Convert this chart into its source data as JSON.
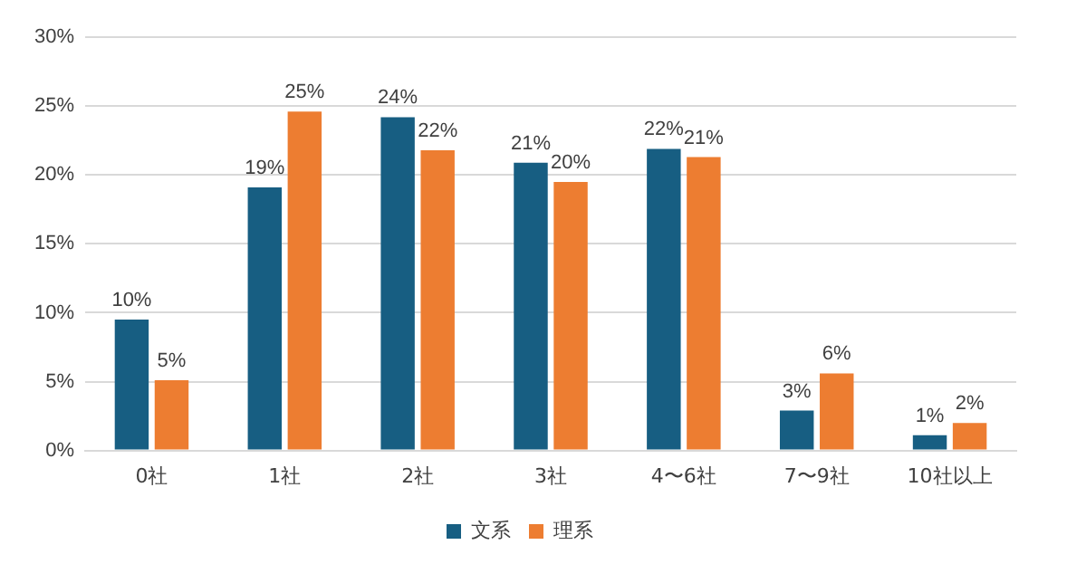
{
  "chart_data": {
    "type": "bar",
    "categories": [
      "0社",
      "1社",
      "2社",
      "3社",
      "4〜6社",
      "7〜9社",
      "10社以上"
    ],
    "series": [
      {
        "name": "文系",
        "color": "#175e82",
        "values": [
          9.5,
          19.1,
          24.2,
          20.9,
          21.9,
          2.9,
          1.1
        ],
        "value_labels": [
          "10%",
          "19%",
          "24%",
          "21%",
          "22%",
          "3%",
          "1%"
        ]
      },
      {
        "name": "理系",
        "color": "#ed7d31",
        "values": [
          5.1,
          24.6,
          21.8,
          19.5,
          21.3,
          5.6,
          2.0
        ],
        "value_labels": [
          "5%",
          "25%",
          "22%",
          "20%",
          "21%",
          "6%",
          "2%"
        ]
      }
    ],
    "ylim": [
      0,
      30
    ],
    "yticks": [
      {
        "value": 0,
        "label": "0%"
      },
      {
        "value": 5,
        "label": "5%"
      },
      {
        "value": 10,
        "label": "10%"
      },
      {
        "value": 15,
        "label": "15%"
      },
      {
        "value": 20,
        "label": "20%"
      },
      {
        "value": 25,
        "label": "25%"
      },
      {
        "value": 30,
        "label": "30%"
      }
    ],
    "grid": "y",
    "legend": "bottom"
  }
}
